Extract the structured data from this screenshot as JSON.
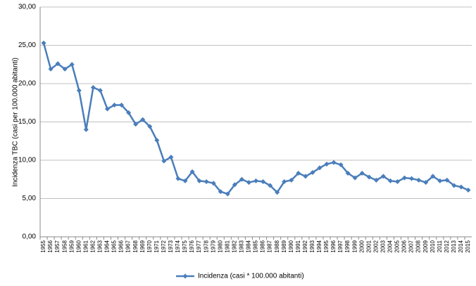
{
  "chart_data": {
    "type": "line",
    "y_label": "Incidenza TBC (casi per 100.000 abitanti)",
    "categories": [
      "1955",
      "1956",
      "1957",
      "1958",
      "1959",
      "1960",
      "1961",
      "1962",
      "1963",
      "1964",
      "1965",
      "1966",
      "1967",
      "1968",
      "1969",
      "1970",
      "1971",
      "1972",
      "1973",
      "1974",
      "1975",
      "1976",
      "1977",
      "1978",
      "1979",
      "1980",
      "1981",
      "1982",
      "1983",
      "1984",
      "1985",
      "1986",
      "1987",
      "1988",
      "1989",
      "1990",
      "1991",
      "1992",
      "1993",
      "1994",
      "1995",
      "1996",
      "1997",
      "1998",
      "1999",
      "2000",
      "2001",
      "2002",
      "2003",
      "2004",
      "2005",
      "2006",
      "2007",
      "2008",
      "2009",
      "2010",
      "2011",
      "2012",
      "2013",
      "2014",
      "2015"
    ],
    "series": [
      {
        "name": "Incidenza (casi * 100.000 abitanti)",
        "color": "#4a7ebb",
        "values": [
          25.3,
          21.9,
          22.6,
          21.9,
          22.5,
          19.1,
          14.0,
          19.5,
          19.1,
          16.7,
          17.2,
          17.2,
          16.2,
          14.7,
          15.3,
          14.4,
          12.6,
          9.9,
          10.4,
          7.6,
          7.3,
          8.5,
          7.3,
          7.2,
          7.0,
          5.9,
          5.6,
          6.8,
          7.5,
          7.1,
          7.3,
          7.2,
          6.7,
          5.8,
          7.2,
          7.4,
          8.3,
          7.9,
          8.4,
          9.0,
          9.5,
          9.7,
          9.4,
          8.3,
          7.7,
          8.3,
          7.8,
          7.4,
          7.9,
          7.3,
          7.2,
          7.7,
          7.6,
          7.4,
          7.1,
          7.9,
          7.3,
          7.4,
          6.7,
          6.5,
          6.1
        ]
      }
    ],
    "ylim": [
      0,
      30
    ],
    "yticks": [
      {
        "value": 0,
        "label": "0,00"
      },
      {
        "value": 5,
        "label": "5,00"
      },
      {
        "value": 10,
        "label": "10,00"
      },
      {
        "value": 15,
        "label": "15,00"
      },
      {
        "value": 20,
        "label": "20,00"
      },
      {
        "value": 25,
        "label": "25,00"
      },
      {
        "value": 30,
        "label": "30,00"
      }
    ],
    "grid": true,
    "legend": "bottom"
  }
}
